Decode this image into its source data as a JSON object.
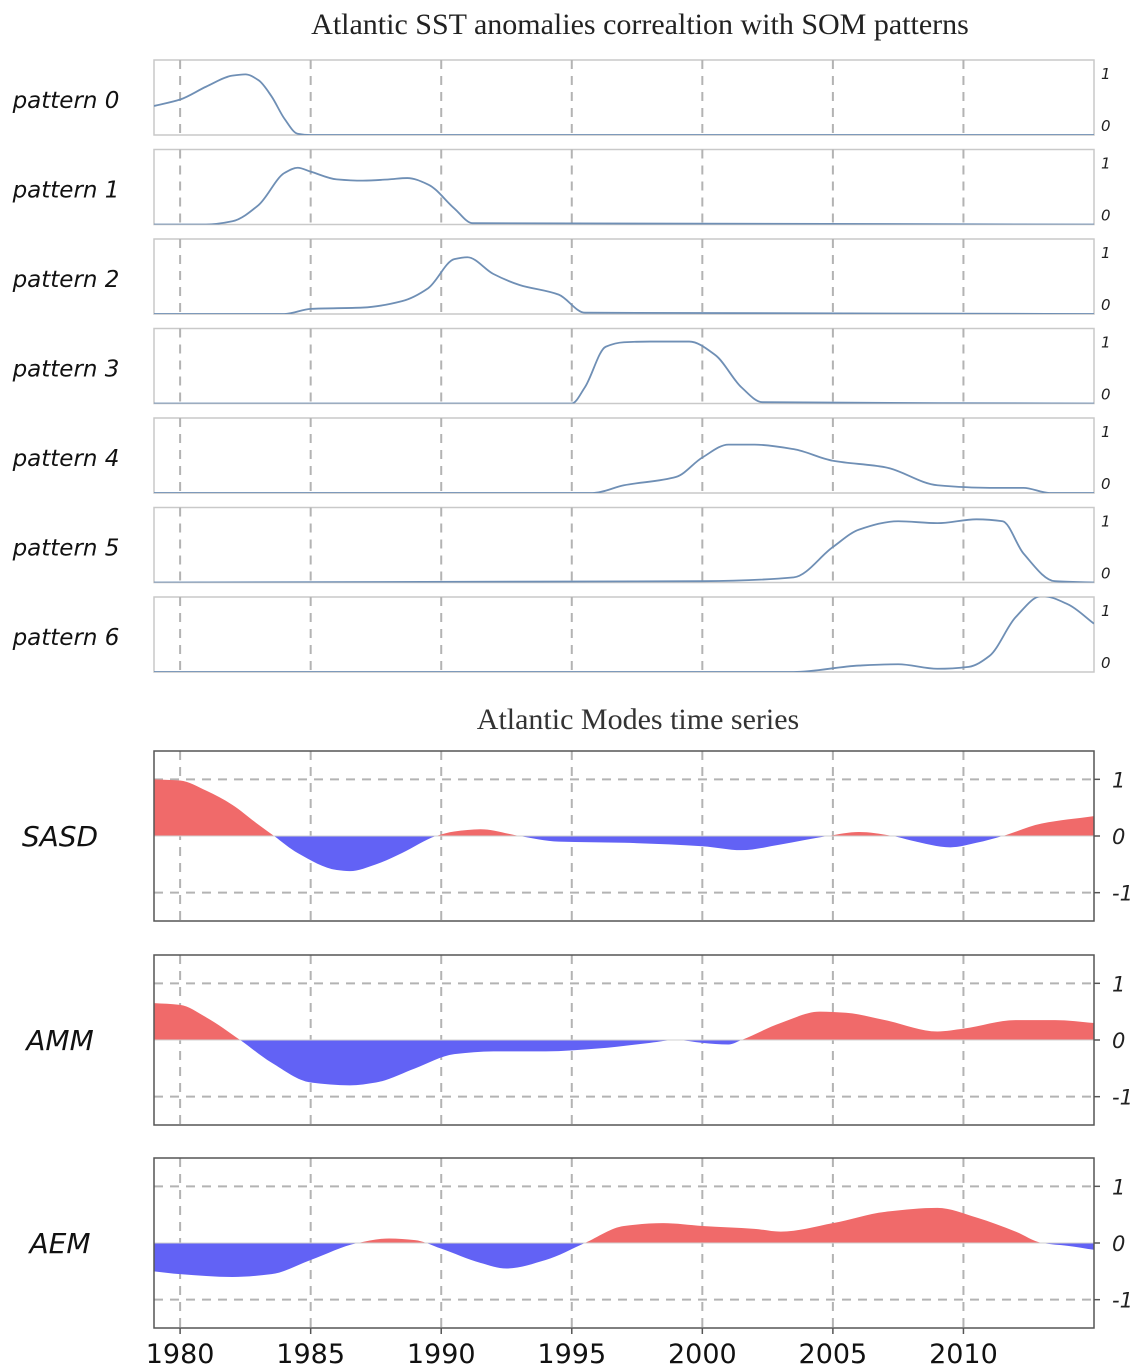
{
  "chart_data": [
    {
      "type": "line",
      "title": "Atlantic SST anomalies correaltion with SOM patterns",
      "xlabel": "",
      "ylabel": "",
      "xlim": [
        1979,
        2015
      ],
      "ylim": [
        0,
        1
      ],
      "yticks": [
        "0",
        "1"
      ],
      "x_gridlines": [
        1980,
        1985,
        1990,
        1995,
        2000,
        2005,
        2010
      ],
      "grid": "vertical dashed",
      "line_color": "#6f8fb5",
      "series": [
        {
          "name": "pattern 0",
          "x": [
            1979,
            1980,
            1981,
            1982,
            1982.5,
            1983,
            1983.5,
            1984,
            1984.5,
            1985,
            2015
          ],
          "y": [
            0.45,
            0.55,
            0.75,
            0.92,
            0.94,
            0.85,
            0.6,
            0.25,
            0.02,
            0,
            0
          ]
        },
        {
          "name": "pattern 1",
          "x": [
            1979,
            1981,
            1982,
            1983,
            1984,
            1984.5,
            1985,
            1986,
            1987,
            1988,
            1988.7,
            1989.5,
            1990.5,
            1991.2,
            2015
          ],
          "y": [
            0,
            0,
            0.05,
            0.3,
            0.8,
            0.88,
            0.82,
            0.7,
            0.68,
            0.7,
            0.72,
            0.62,
            0.25,
            0.02,
            0
          ]
        },
        {
          "name": "pattern 2",
          "x": [
            1979,
            1984,
            1985,
            1987,
            1988.5,
            1989.5,
            1990.5,
            1991,
            1992,
            1993,
            1994.5,
            1995.5,
            2015
          ],
          "y": [
            0,
            0,
            0.08,
            0.1,
            0.2,
            0.4,
            0.85,
            0.88,
            0.62,
            0.45,
            0.3,
            0.02,
            0
          ]
        },
        {
          "name": "pattern 3",
          "x": [
            1979,
            1995,
            1995.5,
            1996.3,
            1997,
            1998,
            1999.5,
            2000.5,
            2001.5,
            2002.3,
            2015
          ],
          "y": [
            0,
            0,
            0.25,
            0.88,
            0.95,
            0.96,
            0.96,
            0.75,
            0.25,
            0.02,
            0
          ]
        },
        {
          "name": "pattern 4",
          "x": [
            1979,
            1995.8,
            1997,
            1999,
            2000,
            2001,
            2002,
            2003.5,
            2005,
            2007,
            2009,
            2011,
            2012.3,
            2013.3,
            2015
          ],
          "y": [
            0,
            0,
            0.12,
            0.25,
            0.55,
            0.75,
            0.75,
            0.68,
            0.5,
            0.4,
            0.12,
            0.08,
            0.08,
            0,
            0
          ]
        },
        {
          "name": "pattern 5",
          "x": [
            1979,
            2000,
            2003.5,
            2005,
            2006,
            2007.5,
            2009,
            2010.5,
            2011.5,
            2012.3,
            2013.5,
            2015
          ],
          "y": [
            0,
            0.02,
            0.08,
            0.55,
            0.82,
            0.95,
            0.92,
            0.98,
            0.95,
            0.45,
            0.02,
            0
          ]
        },
        {
          "name": "pattern 6",
          "x": [
            1979,
            2003.5,
            2006,
            2007.5,
            2009,
            2010.2,
            2011,
            2012,
            2013,
            2014,
            2015
          ],
          "y": [
            0,
            0,
            0.1,
            0.12,
            0.05,
            0.08,
            0.25,
            0.85,
            1.18,
            1.05,
            0.75
          ]
        }
      ]
    },
    {
      "type": "area",
      "title": "Atlantic Modes time series",
      "xlabel": "",
      "ylabel": "",
      "xlim": [
        1979,
        2015
      ],
      "ylim": [
        -1.5,
        1.5
      ],
      "yticks": [
        -1,
        0,
        1
      ],
      "ytick_labels": [
        "-1",
        "0",
        "1"
      ],
      "xticks": [
        1980,
        1985,
        1990,
        1995,
        2000,
        2005,
        2010
      ],
      "xtick_labels": [
        "1980",
        "1985",
        "1990",
        "1995",
        "2000",
        "2005",
        "2010"
      ],
      "grid": "dashed",
      "positive_color": "#f06a6a",
      "negative_color": "#6262f5",
      "series": [
        {
          "name": "SASD",
          "x": [
            1979,
            1980,
            1981,
            1982,
            1983,
            1983.6,
            1984.5,
            1986,
            1986.5,
            1987.5,
            1988.5,
            1989.8,
            1990.5,
            1991.5,
            1993,
            1994.5,
            1997,
            2000,
            2001.5,
            2003,
            2004.8,
            2006,
            2007.3,
            2008,
            2009.5,
            2010.5,
            2011.5,
            2013,
            2015
          ],
          "y": [
            1.0,
            0.98,
            0.8,
            0.55,
            0.2,
            0,
            -0.3,
            -0.6,
            -0.62,
            -0.5,
            -0.3,
            0,
            0.08,
            0.12,
            0,
            -0.1,
            -0.12,
            -0.18,
            -0.25,
            -0.15,
            0,
            0.07,
            0,
            -0.08,
            -0.2,
            -0.12,
            0,
            0.22,
            0.35
          ]
        },
        {
          "name": "AMM",
          "x": [
            1979,
            1980,
            1981,
            1982.3,
            1983.5,
            1985,
            1986.5,
            1987.5,
            1989,
            1990.5,
            1992,
            1994,
            1996,
            1998,
            1999,
            2000,
            2001,
            2001.5,
            2003,
            2004.5,
            2005.5,
            2007,
            2009,
            2010,
            2012,
            2013.5,
            2015
          ],
          "y": [
            0.65,
            0.62,
            0.4,
            0,
            -0.4,
            -0.75,
            -0.8,
            -0.75,
            -0.5,
            -0.25,
            -0.2,
            -0.2,
            -0.15,
            -0.05,
            0,
            -0.05,
            -0.08,
            0,
            0.3,
            0.5,
            0.48,
            0.35,
            0.15,
            0.2,
            0.35,
            0.35,
            0.3
          ]
        },
        {
          "name": "AEM",
          "x": [
            1979,
            1980,
            1982,
            1983.5,
            1985,
            1986.8,
            1988,
            1989,
            1990,
            1991.5,
            1992.5,
            1994,
            1995.5,
            1997,
            1998.5,
            2000,
            2002,
            2003,
            2005,
            2007,
            2009,
            2010.5,
            2012,
            2013,
            2014,
            2015
          ],
          "y": [
            -0.5,
            -0.55,
            -0.6,
            -0.55,
            -0.3,
            0,
            0.08,
            0.05,
            -0.1,
            -0.35,
            -0.45,
            -0.3,
            0,
            0.3,
            0.35,
            0.3,
            0.25,
            0.2,
            0.35,
            0.55,
            0.62,
            0.45,
            0.2,
            0,
            -0.05,
            -0.12
          ]
        }
      ]
    }
  ]
}
